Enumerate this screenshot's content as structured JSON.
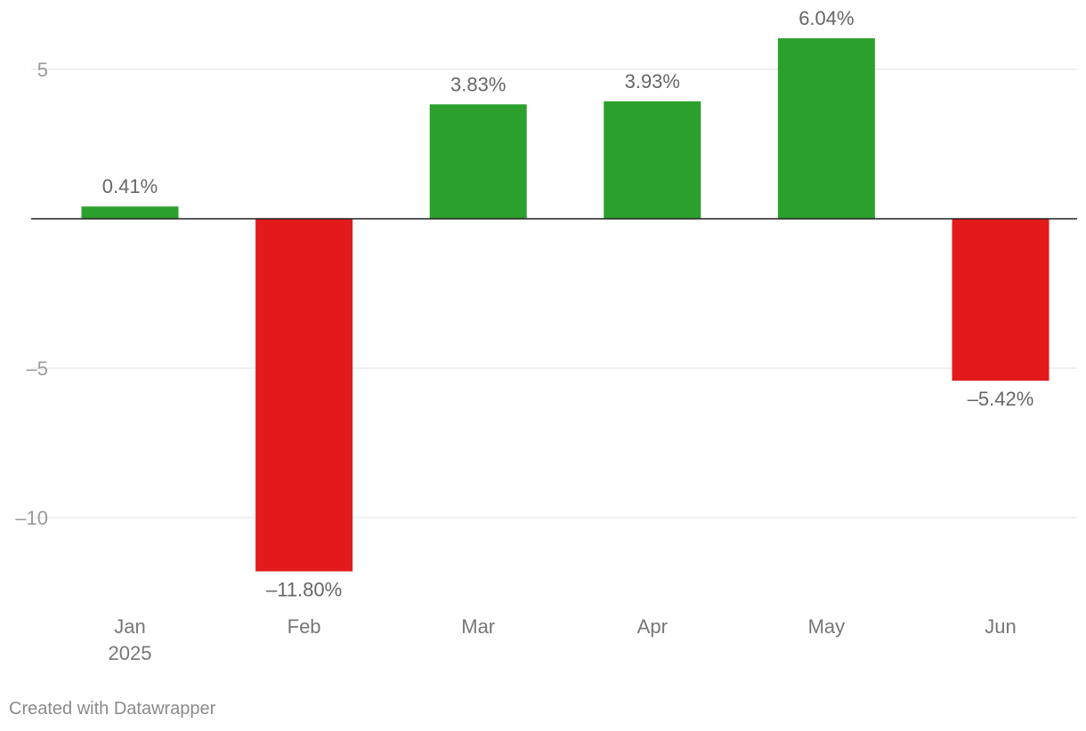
{
  "chart_data": {
    "type": "bar",
    "categories": [
      "Jan",
      "Feb",
      "Mar",
      "Apr",
      "May",
      "Jun"
    ],
    "category_sublabels": [
      "2025",
      "",
      "",
      "",
      "",
      ""
    ],
    "values": [
      0.41,
      -11.8,
      3.83,
      3.93,
      6.04,
      -5.42
    ],
    "value_labels": [
      "0.41%",
      "–11.80%",
      "3.83%",
      "3.93%",
      "6.04%",
      "–5.42%"
    ],
    "y_ticks": [
      5,
      0,
      -5,
      -10
    ],
    "y_tick_labels": [
      "5",
      "",
      "–5",
      "–10"
    ],
    "ylim": [
      -12.5,
      6.5
    ],
    "title": "",
    "xlabel": "",
    "ylabel": "",
    "grid": true,
    "colors": {
      "positive": "#2ca02c",
      "negative": "#e31a1c",
      "zero_line": "#222222",
      "grid": "#e2e2e2"
    }
  },
  "footer": {
    "credit": "Created with Datawrapper"
  }
}
